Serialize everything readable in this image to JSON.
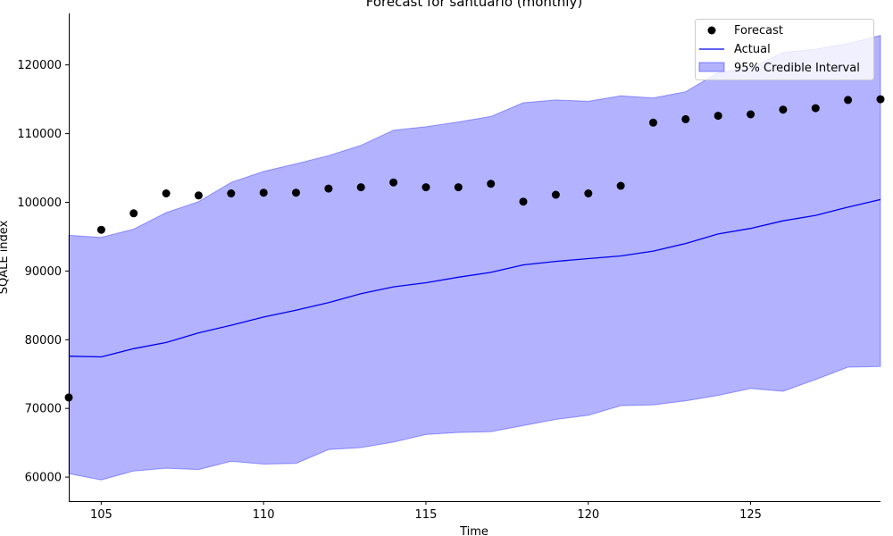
{
  "chart_data": {
    "type": "line",
    "title": "Forecast for santuario (monthly)",
    "xlabel": "Time",
    "ylabel": "SQALE index",
    "xlim": [
      104,
      129
    ],
    "ylim": [
      56500,
      127500
    ],
    "xticks": [
      105,
      110,
      115,
      120,
      125
    ],
    "yticks": [
      60000,
      70000,
      80000,
      90000,
      100000,
      110000,
      120000
    ],
    "x": [
      104,
      105,
      106,
      107,
      108,
      109,
      110,
      111,
      112,
      113,
      114,
      115,
      116,
      117,
      118,
      119,
      120,
      121,
      122,
      123,
      124,
      125,
      126,
      127,
      128,
      129
    ],
    "series": [
      {
        "name": "Forecast",
        "kind": "scatter",
        "color": "#000000",
        "values": [
          71600,
          96000,
          98400,
          101300,
          101000,
          101300,
          101400,
          101400,
          102000,
          102200,
          102900,
          102200,
          102200,
          102700,
          100100,
          101100,
          101300,
          102400,
          111600,
          112100,
          112600,
          112800,
          113500,
          113700,
          114900,
          115000
        ]
      },
      {
        "name": "Actual",
        "kind": "line",
        "color": "#0000ee",
        "values": [
          77600,
          77500,
          78700,
          79600,
          81000,
          82100,
          83300,
          84300,
          85400,
          86700,
          87700,
          88300,
          89100,
          89800,
          90900,
          91400,
          91800,
          92200,
          92900,
          94000,
          95400,
          96200,
          97300,
          98100,
          99300,
          100400
        ]
      },
      {
        "name": "95% Credible Interval",
        "kind": "band",
        "color": "#0000ff",
        "lower": [
          60500,
          59600,
          60900,
          61300,
          61100,
          62300,
          61900,
          62000,
          64000,
          64300,
          65100,
          66200,
          66500,
          66600,
          67500,
          68400,
          69000,
          70400,
          70500,
          71100,
          71900,
          72900,
          72500,
          74200,
          76000,
          76100
        ],
        "upper": [
          95200,
          94900,
          96100,
          98500,
          100100,
          102900,
          104500,
          105600,
          106800,
          108300,
          110500,
          111000,
          111700,
          112500,
          114500,
          114900,
          114700,
          115500,
          115200,
          116100,
          118900,
          119500,
          121800,
          122300,
          123100,
          124300
        ]
      }
    ],
    "legend": {
      "position": "top-right"
    },
    "grid": false
  }
}
